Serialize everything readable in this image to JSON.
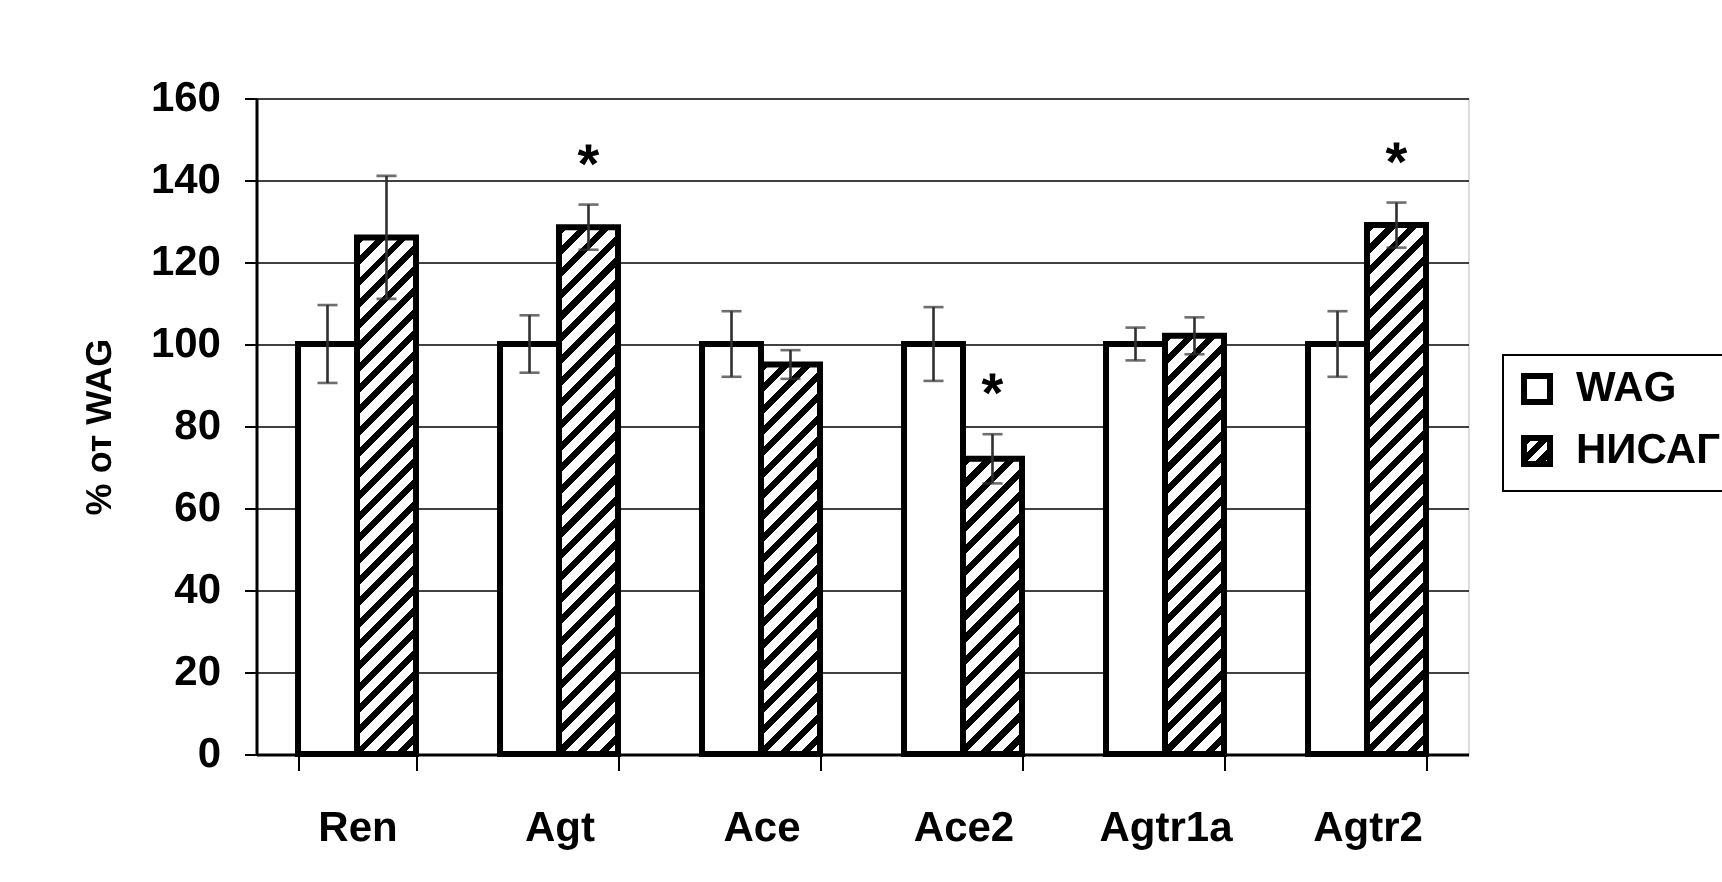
{
  "chart_data": {
    "type": "bar",
    "categories": [
      "Ren",
      "Agt",
      "Ace",
      "Ace2",
      "Agtr1a",
      "Agtr2"
    ],
    "series": [
      {
        "name": "WAG",
        "color": "#ffffff",
        "values": [
          100,
          100,
          100,
          100,
          100,
          100
        ],
        "errors": [
          9.5,
          7,
          8,
          9,
          4,
          8
        ]
      },
      {
        "name": "НИСАГ",
        "color": "#000000",
        "values": [
          126,
          128.5,
          95,
          72,
          102,
          129
        ],
        "errors": [
          15,
          5.5,
          3.5,
          6,
          4.5,
          5.5
        ]
      }
    ],
    "ylabel": "% от WAG",
    "ylim": [
      0,
      160
    ],
    "yticks": [
      0,
      20,
      40,
      60,
      80,
      100,
      120,
      140,
      160
    ],
    "grid": "y",
    "legend": "right",
    "annotations": [
      {
        "text": "*",
        "x": "Agt",
        "y": 128.5
      },
      {
        "text": "*",
        "x": "Ace2",
        "y": 72
      },
      {
        "text": "*",
        "x": "Agtr2",
        "y": 129
      }
    ]
  }
}
